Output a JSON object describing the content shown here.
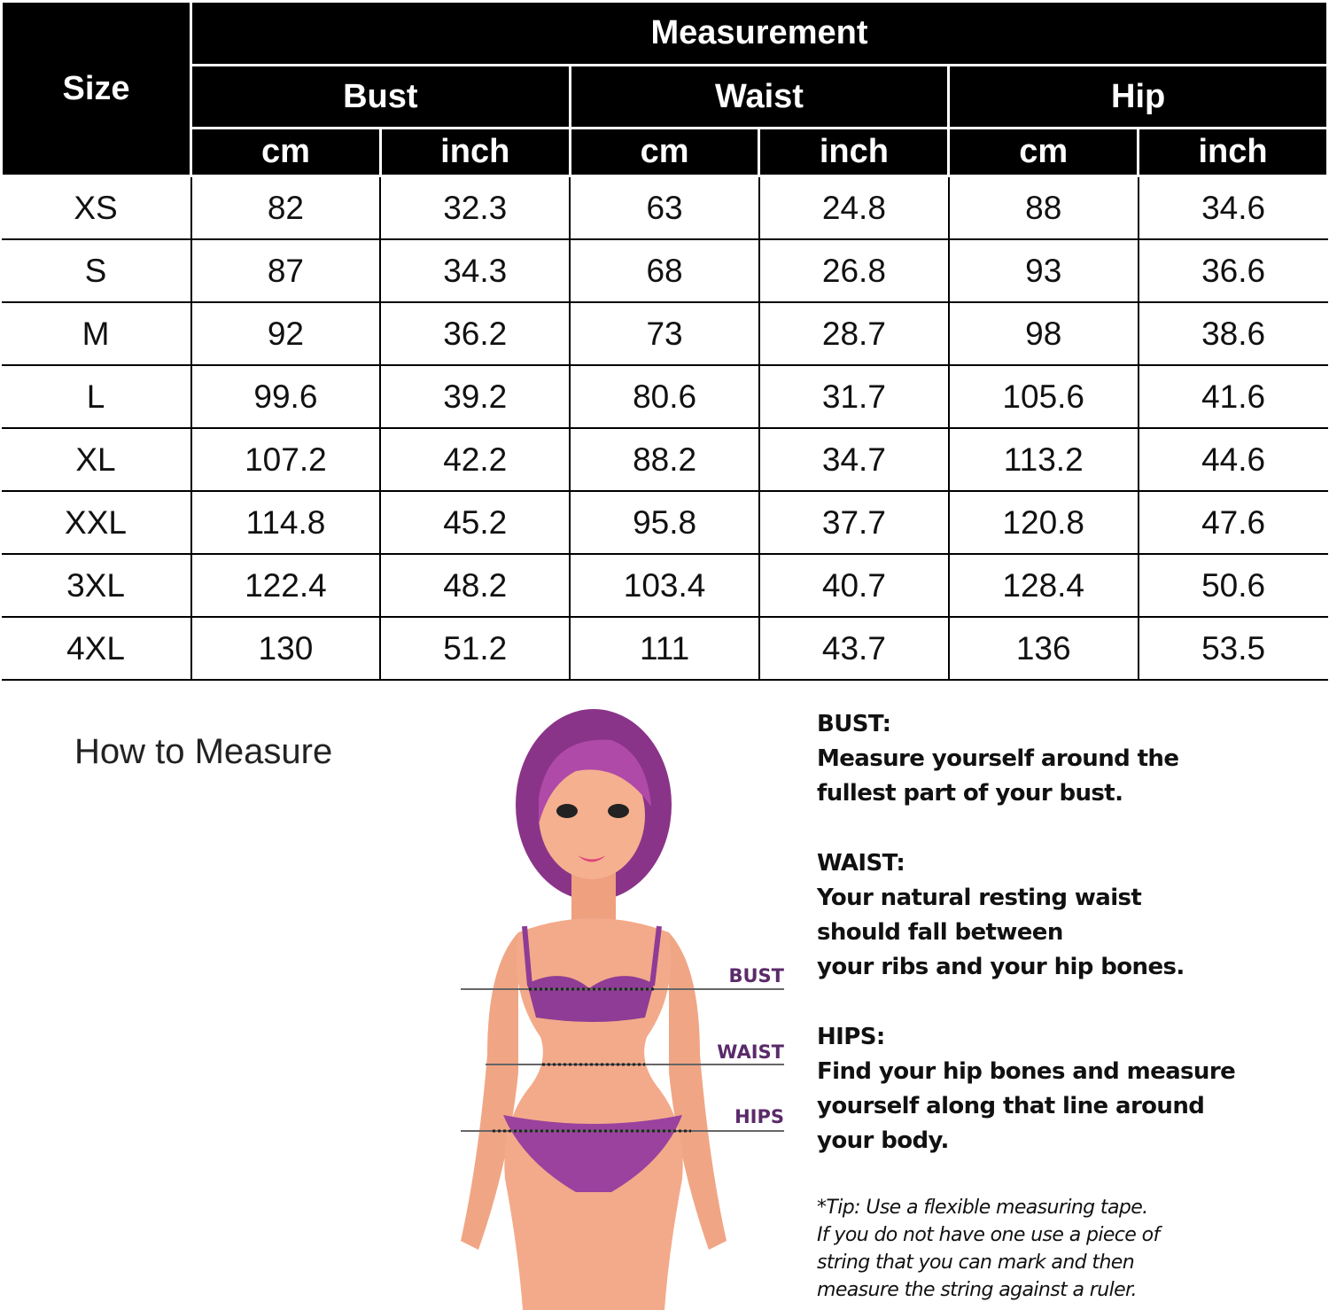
{
  "table": {
    "header": {
      "size": "Size",
      "measurement": "Measurement",
      "groups": [
        "Bust",
        "Waist",
        "Hip"
      ],
      "units": [
        "cm",
        "inch",
        "cm",
        "inch",
        "cm",
        "inch"
      ]
    },
    "rows": [
      [
        "XS",
        82,
        32.3,
        63,
        24.8,
        88,
        34.6
      ],
      [
        "S",
        87,
        34.3,
        68,
        26.8,
        93,
        36.6
      ],
      [
        "M",
        92,
        36.2,
        73,
        28.7,
        98,
        38.6
      ],
      [
        "L",
        99.6,
        39.2,
        80.6,
        31.7,
        105.6,
        41.6
      ],
      [
        "XL",
        107.2,
        42.2,
        88.2,
        34.7,
        113.2,
        44.6
      ],
      [
        "XXL",
        114.8,
        45.2,
        95.8,
        37.7,
        120.8,
        47.6
      ],
      [
        "3XL",
        122.4,
        48.2,
        103.4,
        40.7,
        128.4,
        50.6
      ],
      [
        "4XL",
        130,
        51.2,
        111,
        43.7,
        136,
        53.5
      ]
    ]
  },
  "guide": {
    "title": "How to Measure",
    "figure_labels": [
      "BUST",
      "WAIST",
      "HIPS"
    ],
    "sections": [
      {
        "heading": "BUST:",
        "lines": [
          "Measure yourself around the",
          "fullest part of your bust."
        ]
      },
      {
        "heading": "WAIST:",
        "lines": [
          "Your natural resting waist",
          "should fall between",
          "your ribs and your hip bones."
        ]
      },
      {
        "heading": "HIPS:",
        "lines": [
          "Find your hip bones and measure",
          "yourself along that line around",
          "your body."
        ]
      }
    ],
    "tip": [
      "*Tip: Use a flexible measuring tape.",
      "If you do not have one use a piece of",
      "string that you can mark and then",
      "measure the string against a ruler."
    ]
  }
}
